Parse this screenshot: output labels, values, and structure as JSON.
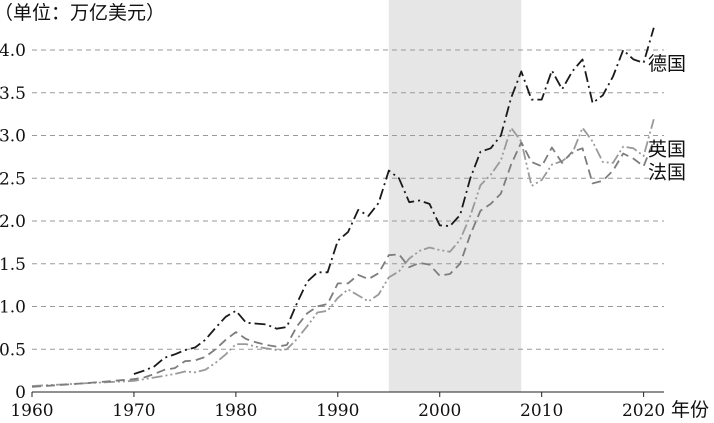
{
  "chart_data": {
    "type": "line",
    "unit_label": "（单位：万亿美元）",
    "xlabel": "年份",
    "ylabel": "",
    "xlim": [
      1960,
      2022
    ],
    "ylim": [
      0,
      4.0
    ],
    "x_ticks": [
      1960,
      1970,
      1980,
      1990,
      2000,
      2010,
      2020
    ],
    "y_ticks": [
      0,
      0.5,
      1.0,
      1.5,
      2.0,
      2.5,
      3.0,
      3.5,
      4.0
    ],
    "y_tick_labels": [
      "0",
      "0.5",
      "1.0",
      "1.5",
      "2.0",
      "2.5",
      "3.0",
      "3.5",
      "4.0"
    ],
    "grid": "horizontal dashed",
    "shaded_region": {
      "x_start": 1995,
      "x_end": 2008,
      "color": "#e6e6e6"
    },
    "series": [
      {
        "name": "德国",
        "color": "#1a1a1a",
        "dash": "dashdot",
        "x": [
          1970,
          1971,
          1972,
          1973,
          1974,
          1975,
          1976,
          1977,
          1978,
          1979,
          1980,
          1981,
          1982,
          1983,
          1984,
          1985,
          1986,
          1987,
          1988,
          1989,
          1990,
          1991,
          1992,
          1993,
          1994,
          1995,
          1996,
          1997,
          1998,
          1999,
          2000,
          2001,
          2002,
          2003,
          2004,
          2005,
          2006,
          2007,
          2008,
          2009,
          2010,
          2011,
          2012,
          2013,
          2014,
          2015,
          2016,
          2017,
          2018,
          2019,
          2020,
          2021
        ],
        "values": [
          0.21,
          0.25,
          0.3,
          0.4,
          0.44,
          0.49,
          0.52,
          0.61,
          0.75,
          0.88,
          0.95,
          0.81,
          0.8,
          0.79,
          0.74,
          0.76,
          1.04,
          1.29,
          1.4,
          1.4,
          1.77,
          1.87,
          2.13,
          2.06,
          2.21,
          2.59,
          2.5,
          2.22,
          2.24,
          2.2,
          1.95,
          1.94,
          2.07,
          2.5,
          2.81,
          2.85,
          3.0,
          3.44,
          3.75,
          3.42,
          3.42,
          3.76,
          3.54,
          3.75,
          3.89,
          3.38,
          3.47,
          3.69,
          4.0,
          3.89,
          3.85,
          4.26
        ]
      },
      {
        "name": "英国",
        "color": "#9a9a9a",
        "dash": "dashdotdot",
        "x": [
          1960,
          1965,
          1970,
          1971,
          1972,
          1973,
          1974,
          1975,
          1976,
          1977,
          1978,
          1979,
          1980,
          1981,
          1982,
          1983,
          1984,
          1985,
          1986,
          1987,
          1988,
          1989,
          1990,
          1991,
          1992,
          1993,
          1994,
          1995,
          1996,
          1997,
          1998,
          1999,
          2000,
          2001,
          2002,
          2003,
          2004,
          2005,
          2006,
          2007,
          2008,
          2009,
          2010,
          2011,
          2012,
          2013,
          2014,
          2015,
          2016,
          2017,
          2018,
          2019,
          2020,
          2021
        ],
        "values": [
          0.07,
          0.1,
          0.13,
          0.15,
          0.17,
          0.19,
          0.21,
          0.24,
          0.23,
          0.26,
          0.34,
          0.44,
          0.56,
          0.56,
          0.53,
          0.51,
          0.49,
          0.5,
          0.62,
          0.77,
          0.93,
          0.95,
          1.1,
          1.2,
          1.13,
          1.06,
          1.14,
          1.34,
          1.41,
          1.56,
          1.65,
          1.69,
          1.66,
          1.64,
          1.78,
          2.06,
          2.42,
          2.54,
          2.71,
          3.09,
          2.93,
          2.41,
          2.48,
          2.66,
          2.7,
          2.79,
          3.09,
          2.93,
          2.69,
          2.68,
          2.87,
          2.85,
          2.76,
          3.19
        ]
      },
      {
        "name": "法国",
        "color": "#7d7d7d",
        "dash": "dash",
        "x": [
          1960,
          1965,
          1970,
          1971,
          1972,
          1973,
          1974,
          1975,
          1976,
          1977,
          1978,
          1979,
          1980,
          1981,
          1982,
          1983,
          1984,
          1985,
          1986,
          1987,
          1988,
          1989,
          1990,
          1991,
          1992,
          1993,
          1994,
          1995,
          1996,
          1997,
          1998,
          1999,
          2000,
          2001,
          2002,
          2003,
          2004,
          2005,
          2006,
          2007,
          2008,
          2009,
          2010,
          2011,
          2012,
          2013,
          2014,
          2015,
          2016,
          2017,
          2018,
          2019,
          2020,
          2021
        ],
        "values": [
          0.06,
          0.1,
          0.15,
          0.17,
          0.21,
          0.26,
          0.28,
          0.36,
          0.37,
          0.41,
          0.5,
          0.61,
          0.7,
          0.62,
          0.58,
          0.55,
          0.53,
          0.55,
          0.77,
          0.92,
          1.0,
          1.03,
          1.27,
          1.27,
          1.37,
          1.32,
          1.39,
          1.6,
          1.61,
          1.46,
          1.51,
          1.49,
          1.36,
          1.38,
          1.5,
          1.84,
          2.12,
          2.2,
          2.32,
          2.66,
          2.92,
          2.69,
          2.64,
          2.86,
          2.68,
          2.81,
          2.85,
          2.44,
          2.47,
          2.59,
          2.79,
          2.73,
          2.64,
          2.94
        ]
      }
    ]
  }
}
